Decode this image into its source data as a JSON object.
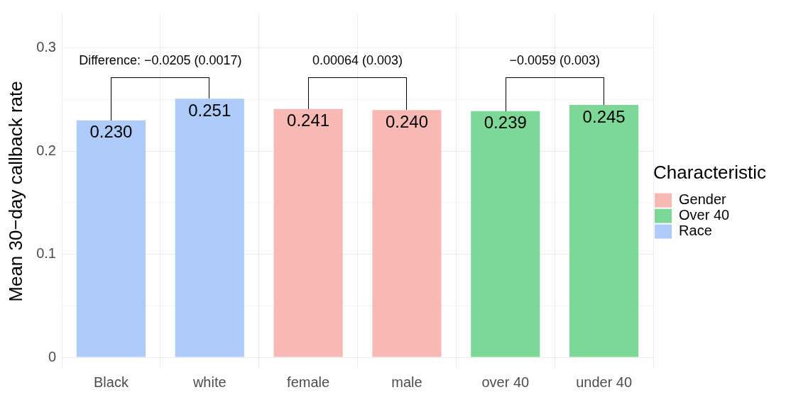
{
  "chart_data": {
    "type": "bar",
    "ylabel": "Mean 30−day callback rate",
    "legend_title": "Characteristic",
    "legend": "right",
    "grid": true,
    "categories": [
      "Black",
      "white",
      "female",
      "male",
      "over 40",
      "under 40"
    ],
    "series": [
      {
        "name": "Gender",
        "color": "#f8b8b3",
        "values": [
          null,
          null,
          0.241,
          0.24,
          null,
          null
        ],
        "value_labels": [
          null,
          null,
          "0.241",
          "0.240",
          null,
          null
        ]
      },
      {
        "name": "Over 40",
        "color": "#7dd898",
        "values": [
          null,
          null,
          null,
          null,
          0.239,
          0.245
        ],
        "value_labels": [
          null,
          null,
          null,
          null,
          "0.239",
          "0.245"
        ]
      },
      {
        "name": "Race",
        "color": "#aecbfa",
        "values": [
          0.23,
          0.251,
          null,
          null,
          null,
          null
        ],
        "value_labels": [
          "0.230",
          "0.251",
          null,
          null,
          null,
          null
        ]
      }
    ],
    "ylim": [
      -0.011,
      0.333
    ],
    "yticks": [
      0,
      {
        "value": 0.05,
        "label": null
      },
      0.1,
      {
        "value": 0.15,
        "label": null
      },
      0.2,
      {
        "value": 0.25,
        "label": null
      },
      0.3
    ],
    "annotations": [
      "Difference: −0.0205 (0.0017)",
      "0.00064 (0.003)",
      "−0.0059 (0.003)"
    ]
  }
}
